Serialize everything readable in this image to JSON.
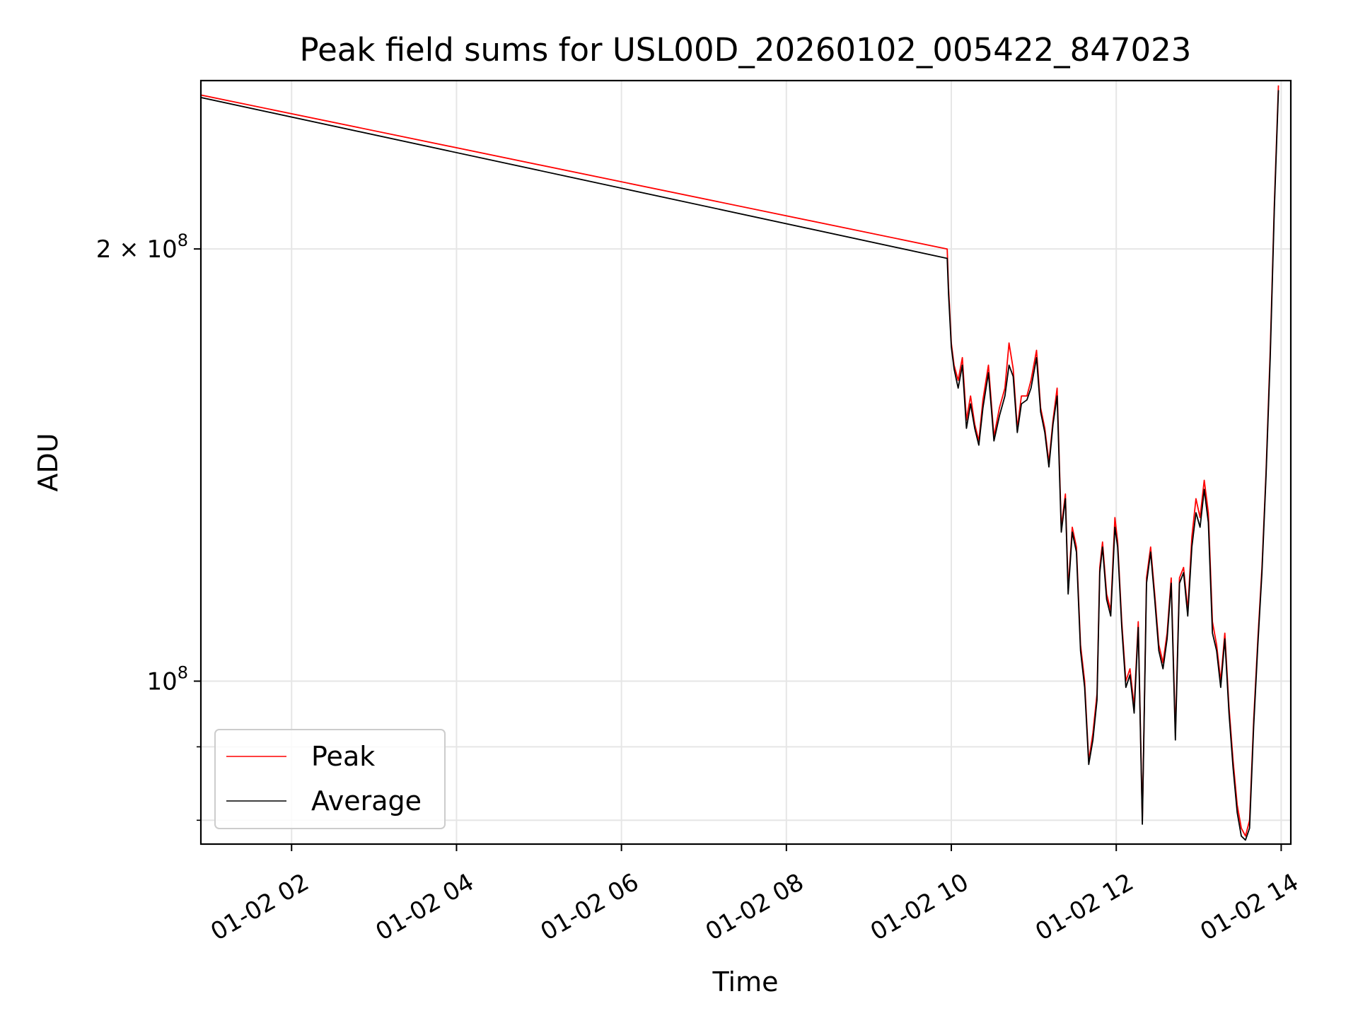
{
  "chart_data": {
    "type": "line",
    "title": "Peak field sums for USL00D_20260102_005422_847023",
    "xlabel": "Time",
    "ylabel": "ADU",
    "y_scale": "log",
    "ylim": [
      77000000,
      262000000
    ],
    "xlim": [
      "2026-01-02 00:54",
      "2026-01-02 14:07"
    ],
    "x_ticks": [
      {
        "value": "2026-01-02 02:00",
        "label": "01-02 02"
      },
      {
        "value": "2026-01-02 04:00",
        "label": "01-02 04"
      },
      {
        "value": "2026-01-02 06:00",
        "label": "01-02 06"
      },
      {
        "value": "2026-01-02 08:00",
        "label": "01-02 08"
      },
      {
        "value": "2026-01-02 10:00",
        "label": "01-02 10"
      },
      {
        "value": "2026-01-02 12:00",
        "label": "01-02 12"
      },
      {
        "value": "2026-01-02 14:00",
        "label": "01-02 14"
      }
    ],
    "y_major_ticks": [
      {
        "value": 100000000,
        "base": "10",
        "exp": "8"
      },
      {
        "value": 200000000,
        "base": "2 × 10",
        "exp": "8"
      }
    ],
    "y_minor_ticks": [
      80000000,
      90000000
    ],
    "grid": true,
    "legend": {
      "placement": "lower-left"
    },
    "series": [
      {
        "name": "Peak",
        "color": "#ff0000",
        "x": [
          "2026-01-02 00:54",
          "2026-01-02 09:57",
          "2026-01-02 09:58",
          "2026-01-02 10:00",
          "2026-01-02 10:02",
          "2026-01-02 10:05",
          "2026-01-02 10:08",
          "2026-01-02 10:11",
          "2026-01-02 10:14",
          "2026-01-02 10:17",
          "2026-01-02 10:20",
          "2026-01-02 10:23",
          "2026-01-02 10:27",
          "2026-01-02 10:31",
          "2026-01-02 10:35",
          "2026-01-02 10:39",
          "2026-01-02 10:42",
          "2026-01-02 10:45",
          "2026-01-02 10:48",
          "2026-01-02 10:51",
          "2026-01-02 10:55",
          "2026-01-02 10:58",
          "2026-01-02 11:02",
          "2026-01-02 11:05",
          "2026-01-02 11:08",
          "2026-01-02 11:11",
          "2026-01-02 11:14",
          "2026-01-02 11:17",
          "2026-01-02 11:20",
          "2026-01-02 11:23",
          "2026-01-02 11:25",
          "2026-01-02 11:28",
          "2026-01-02 11:31",
          "2026-01-02 11:34",
          "2026-01-02 11:37",
          "2026-01-02 11:40",
          "2026-01-02 11:43",
          "2026-01-02 11:46",
          "2026-01-02 11:48",
          "2026-01-02 11:50",
          "2026-01-02 11:53",
          "2026-01-02 11:56",
          "2026-01-02 11:59",
          "2026-01-02 12:01",
          "2026-01-02 12:04",
          "2026-01-02 12:07",
          "2026-01-02 12:10",
          "2026-01-02 12:13",
          "2026-01-02 12:16",
          "2026-01-02 12:19",
          "2026-01-02 12:22",
          "2026-01-02 12:25",
          "2026-01-02 12:28",
          "2026-01-02 12:31",
          "2026-01-02 12:34",
          "2026-01-02 12:37",
          "2026-01-02 12:40",
          "2026-01-02 12:43",
          "2026-01-02 12:46",
          "2026-01-02 12:49",
          "2026-01-02 12:52",
          "2026-01-02 12:55",
          "2026-01-02 12:58",
          "2026-01-02 13:01",
          "2026-01-02 13:04",
          "2026-01-02 13:07",
          "2026-01-02 13:10",
          "2026-01-02 13:13",
          "2026-01-02 13:16",
          "2026-01-02 13:19",
          "2026-01-02 13:22",
          "2026-01-02 13:25",
          "2026-01-02 13:28",
          "2026-01-02 13:31",
          "2026-01-02 13:34",
          "2026-01-02 13:37",
          "2026-01-02 13:40",
          "2026-01-02 13:43",
          "2026-01-02 13:46",
          "2026-01-02 13:49",
          "2026-01-02 13:52",
          "2026-01-02 13:55",
          "2026-01-02 13:58"
        ],
        "y": [
          256000000,
          200000000,
          188000000,
          172000000,
          166000000,
          162000000,
          168000000,
          152000000,
          158000000,
          151000000,
          147000000,
          157000000,
          166000000,
          148000000,
          155000000,
          160000000,
          172000000,
          165000000,
          150000000,
          158000000,
          158000000,
          162000000,
          170000000,
          155000000,
          150000000,
          142000000,
          152000000,
          160000000,
          128000000,
          135000000,
          116000000,
          128000000,
          124000000,
          106000000,
          100000000,
          88000000,
          92000000,
          98000000,
          120000000,
          125000000,
          115000000,
          112000000,
          130000000,
          125000000,
          110000000,
          100000000,
          102000000,
          96000000,
          110000000,
          80000000,
          118000000,
          124000000,
          115000000,
          106000000,
          103000000,
          108000000,
          118000000,
          92000000,
          118000000,
          120000000,
          112000000,
          126000000,
          134000000,
          130000000,
          138000000,
          131000000,
          110000000,
          106000000,
          100000000,
          108000000,
          96000000,
          88000000,
          82000000,
          79000000,
          78000000,
          80000000,
          94000000,
          107000000,
          120000000,
          140000000,
          170000000,
          215000000,
          260000000
        ]
      },
      {
        "name": "Average",
        "color": "#000000",
        "x": [
          "2026-01-02 00:54",
          "2026-01-02 09:57",
          "2026-01-02 09:58",
          "2026-01-02 10:00",
          "2026-01-02 10:02",
          "2026-01-02 10:05",
          "2026-01-02 10:08",
          "2026-01-02 10:11",
          "2026-01-02 10:14",
          "2026-01-02 10:17",
          "2026-01-02 10:20",
          "2026-01-02 10:23",
          "2026-01-02 10:27",
          "2026-01-02 10:31",
          "2026-01-02 10:35",
          "2026-01-02 10:39",
          "2026-01-02 10:42",
          "2026-01-02 10:45",
          "2026-01-02 10:48",
          "2026-01-02 10:51",
          "2026-01-02 10:55",
          "2026-01-02 10:58",
          "2026-01-02 11:02",
          "2026-01-02 11:05",
          "2026-01-02 11:08",
          "2026-01-02 11:11",
          "2026-01-02 11:14",
          "2026-01-02 11:17",
          "2026-01-02 11:20",
          "2026-01-02 11:23",
          "2026-01-02 11:25",
          "2026-01-02 11:28",
          "2026-01-02 11:31",
          "2026-01-02 11:34",
          "2026-01-02 11:37",
          "2026-01-02 11:40",
          "2026-01-02 11:43",
          "2026-01-02 11:46",
          "2026-01-02 11:48",
          "2026-01-02 11:50",
          "2026-01-02 11:53",
          "2026-01-02 11:56",
          "2026-01-02 11:59",
          "2026-01-02 12:01",
          "2026-01-02 12:04",
          "2026-01-02 12:07",
          "2026-01-02 12:10",
          "2026-01-02 12:13",
          "2026-01-02 12:16",
          "2026-01-02 12:19",
          "2026-01-02 12:22",
          "2026-01-02 12:25",
          "2026-01-02 12:28",
          "2026-01-02 12:31",
          "2026-01-02 12:34",
          "2026-01-02 12:37",
          "2026-01-02 12:40",
          "2026-01-02 12:43",
          "2026-01-02 12:46",
          "2026-01-02 12:49",
          "2026-01-02 12:52",
          "2026-01-02 12:55",
          "2026-01-02 12:58",
          "2026-01-02 13:01",
          "2026-01-02 13:04",
          "2026-01-02 13:07",
          "2026-01-02 13:10",
          "2026-01-02 13:13",
          "2026-01-02 13:16",
          "2026-01-02 13:19",
          "2026-01-02 13:22",
          "2026-01-02 13:25",
          "2026-01-02 13:28",
          "2026-01-02 13:31",
          "2026-01-02 13:34",
          "2026-01-02 13:37",
          "2026-01-02 13:40",
          "2026-01-02 13:43",
          "2026-01-02 13:46",
          "2026-01-02 13:49",
          "2026-01-02 13:52",
          "2026-01-02 13:55",
          "2026-01-02 13:58"
        ],
        "y": [
          255000000,
          197000000,
          186000000,
          171000000,
          165000000,
          160000000,
          166000000,
          150000000,
          156000000,
          150000000,
          146000000,
          155000000,
          164000000,
          147000000,
          153000000,
          158000000,
          166000000,
          163000000,
          149000000,
          156000000,
          157000000,
          160000000,
          168000000,
          154000000,
          149000000,
          141000000,
          151000000,
          158000000,
          127000000,
          134000000,
          115000000,
          127000000,
          123000000,
          105000000,
          99000000,
          87500000,
          91000000,
          97000000,
          119000000,
          124000000,
          114000000,
          111000000,
          128000000,
          124000000,
          109000000,
          99000000,
          101000000,
          95000000,
          109000000,
          79500000,
          117000000,
          123000000,
          114000000,
          105000000,
          102000000,
          107000000,
          117000000,
          91000000,
          117000000,
          119000000,
          111000000,
          124000000,
          131000000,
          128000000,
          136000000,
          129000000,
          108000000,
          105000000,
          99000000,
          107000000,
          95000000,
          87000000,
          81000000,
          78000000,
          77500000,
          79000000,
          93000000,
          106000000,
          119000000,
          139000000,
          168000000,
          213000000,
          258000000
        ]
      }
    ]
  }
}
